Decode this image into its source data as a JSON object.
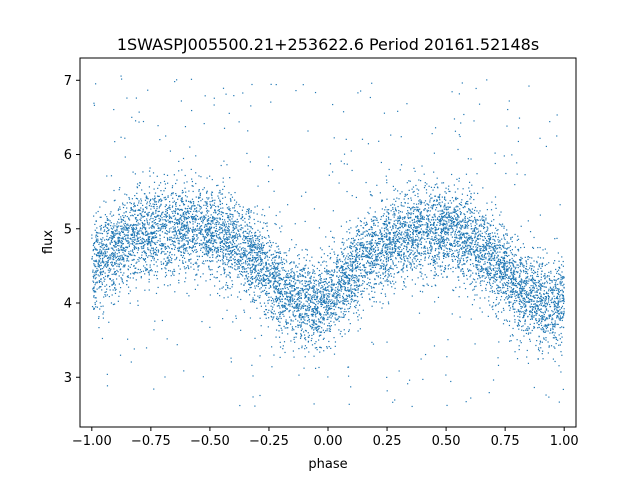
{
  "chart_data": {
    "type": "scatter",
    "title": "1SWASPJ005500.21+253622.6 Period 20161.52148s",
    "xlabel": "phase",
    "ylabel": "flux",
    "xlim": [
      -1.05,
      1.05
    ],
    "ylim": [
      2.33,
      7.3
    ],
    "xticks": [
      -1.0,
      -0.75,
      -0.5,
      -0.25,
      0.0,
      0.25,
      0.5,
      0.75,
      1.0
    ],
    "xtick_labels": [
      "−1.00",
      "−0.75",
      "−0.50",
      "−0.25",
      "0.00",
      "0.25",
      "0.50",
      "0.75",
      "1.00"
    ],
    "yticks": [
      3,
      4,
      5,
      6,
      7
    ],
    "ytick_labels": [
      "3",
      "4",
      "5",
      "6",
      "7"
    ],
    "grid": false,
    "marker_color": "#1f77b4",
    "model_curve": {
      "phase": [
        -1.0,
        -0.9,
        -0.8,
        -0.7,
        -0.6,
        -0.5,
        -0.4,
        -0.3,
        -0.2,
        -0.1,
        -0.05,
        0.0,
        0.1,
        0.2,
        0.3,
        0.4,
        0.5,
        0.6,
        0.7,
        0.8,
        0.9,
        0.95,
        1.0
      ],
      "flux_median": [
        4.45,
        4.75,
        4.92,
        5.0,
        5.02,
        4.98,
        4.82,
        4.55,
        4.2,
        3.98,
        3.97,
        4.05,
        4.4,
        4.72,
        4.9,
        4.98,
        4.98,
        4.85,
        4.58,
        4.25,
        4.0,
        3.98,
        4.05
      ],
      "scatter_sd": 0.3
    }
  }
}
